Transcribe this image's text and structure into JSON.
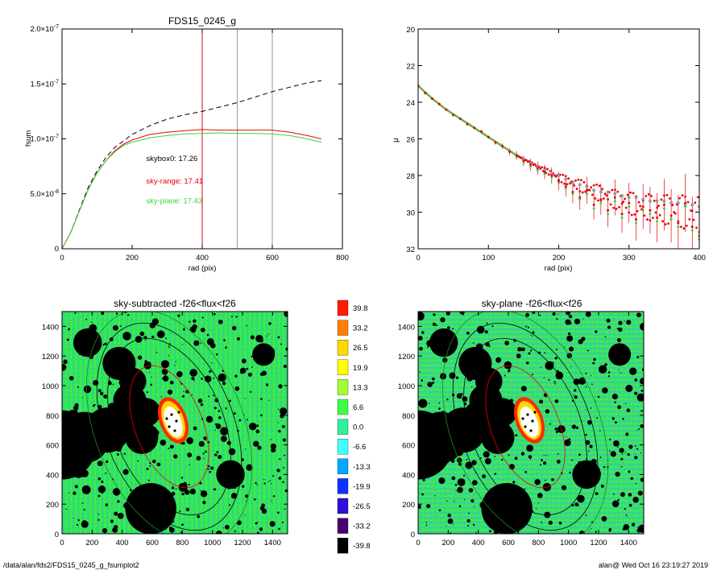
{
  "footer": {
    "left": "/data/alan/fds2/FDS15_0245_g_fsumplot2",
    "right": "alan@  Wed Oct 16 23:19:27 2019"
  },
  "colors": {
    "red": "#e8000b",
    "green": "#39d439",
    "grey": "#9a9a9a",
    "dashed": "#000000",
    "greyMarker": "#8c8ca0"
  },
  "chart_data": [
    {
      "type": "line",
      "title": "FDS15_0245_g",
      "xlabel": "rad (pix)",
      "ylabel": "fsum",
      "xlim": [
        0,
        800
      ],
      "ylim": [
        0,
        2e-07
      ],
      "xticks": [
        "0",
        "200",
        "400",
        "600",
        "800"
      ],
      "yticks": [
        {
          "mant": "0",
          "exp": ""
        },
        {
          "mant": "5.0×10",
          "exp": "-8"
        },
        {
          "mant": "1.0×10",
          "exp": "-7"
        },
        {
          "mant": "1.5×10",
          "exp": "-7"
        },
        {
          "mant": "2.0×10",
          "exp": "-7"
        }
      ],
      "vlines": [
        {
          "x": 400,
          "color": "red"
        },
        {
          "x": 500,
          "color": "grey"
        },
        {
          "x": 600,
          "color": "grey"
        }
      ],
      "annotations": [
        {
          "text": "skybox0: 17.26",
          "x": 240,
          "y": 8e-08,
          "color": "black"
        },
        {
          "text": "sky-range: 17.41",
          "x": 240,
          "y": 5.95e-08,
          "color": "red"
        },
        {
          "text": "sky-plane: 17.43",
          "x": 240,
          "y": 4.15e-08,
          "color": "green"
        }
      ],
      "series": [
        {
          "style": "dashed",
          "color": "black",
          "x": [
            0,
            25,
            50,
            75,
            100,
            125,
            150,
            175,
            200,
            250,
            300,
            350,
            400,
            450,
            500,
            550,
            600,
            650,
            700,
            740
          ],
          "y": [
            0,
            1.5e-08,
            3.6e-08,
            5.6e-08,
            7.1e-08,
            8.3e-08,
            9.2e-08,
            9.8e-08,
            1.04e-07,
            1.12e-07,
            1.18e-07,
            1.22e-07,
            1.25e-07,
            1.29e-07,
            1.33e-07,
            1.38e-07,
            1.43e-07,
            1.47e-07,
            1.51e-07,
            1.53e-07
          ]
        },
        {
          "style": "solid",
          "color": "red",
          "x": [
            0,
            25,
            50,
            75,
            100,
            125,
            150,
            175,
            200,
            250,
            300,
            350,
            400,
            450,
            500,
            550,
            600,
            650,
            700,
            740
          ],
          "y": [
            0,
            1.5e-08,
            3.5e-08,
            5.4e-08,
            6.9e-08,
            8e-08,
            8.9e-08,
            9.5e-08,
            9.9e-08,
            1.04e-07,
            1.06e-07,
            1.075e-07,
            1.085e-07,
            1.08e-07,
            1.08e-07,
            1.08e-07,
            1.08e-07,
            1.06e-07,
            1.03e-07,
            1e-07
          ]
        },
        {
          "style": "solid",
          "color": "green",
          "x": [
            0,
            25,
            50,
            75,
            100,
            125,
            150,
            175,
            200,
            250,
            300,
            350,
            400,
            450,
            500,
            550,
            600,
            650,
            700,
            740
          ],
          "y": [
            0,
            1.5e-08,
            3.5e-08,
            5.4e-08,
            6.9e-08,
            8e-08,
            8.8e-08,
            9.4e-08,
            9.7e-08,
            1.01e-07,
            1.03e-07,
            1.045e-07,
            1.05e-07,
            1.055e-07,
            1.05e-07,
            1.05e-07,
            1.045e-07,
            1.03e-07,
            1e-07,
            9.7e-08
          ]
        }
      ]
    },
    {
      "type": "scatter",
      "title": "",
      "xlabel": "rad (pix)",
      "ylabel": "μ",
      "xlim": [
        0,
        400
      ],
      "ylim": [
        32,
        20
      ],
      "xticks": [
        "0",
        "100",
        "200",
        "300",
        "400"
      ],
      "yticks": [
        "20",
        "22",
        "24",
        "26",
        "28",
        "30",
        "32"
      ],
      "trend": {
        "x": [
          0,
          20,
          40,
          60,
          80,
          100,
          120,
          140,
          160,
          180,
          200,
          220,
          240,
          260,
          280,
          300,
          320,
          340,
          360,
          380,
          400
        ],
        "y": [
          23.1,
          23.8,
          24.4,
          24.9,
          25.4,
          25.9,
          26.4,
          26.9,
          27.3,
          27.7,
          28.1,
          28.4,
          28.7,
          29.0,
          29.3,
          29.5,
          29.7,
          29.8,
          29.9,
          30.0,
          30.1
        ]
      },
      "sky_range_points": {
        "x": [
          0,
          10,
          20,
          30,
          40,
          50,
          60,
          70,
          80,
          90,
          100,
          110,
          120,
          130,
          140,
          150,
          160,
          170,
          180,
          190,
          200,
          210,
          220,
          230,
          240,
          250,
          260,
          270,
          280,
          290,
          300,
          310,
          320,
          330,
          340,
          350,
          360,
          370,
          380,
          390,
          400
        ],
        "y": [
          23.1,
          23.5,
          23.8,
          24.1,
          24.4,
          24.7,
          24.9,
          25.2,
          25.4,
          25.6,
          25.9,
          26.2,
          26.4,
          26.7,
          26.9,
          27.2,
          27.4,
          27.6,
          27.8,
          28.0,
          28.3,
          28.6,
          28.9,
          29.2,
          28.8,
          29.6,
          29.3,
          29.9,
          29.2,
          30.1,
          29.5,
          30.4,
          29.7,
          29.9,
          30.3,
          29.6,
          30.2,
          30.6,
          29.5,
          30.8,
          31.3
        ]
      },
      "sky_plane_points": {
        "x": [
          0,
          10,
          20,
          30,
          40,
          50,
          60,
          70,
          80,
          90,
          100,
          110,
          120,
          130,
          140,
          150,
          160,
          170,
          180,
          190,
          200,
          210,
          220,
          230,
          240,
          250,
          260,
          270,
          280,
          290,
          300,
          310,
          320,
          330,
          340,
          350,
          360,
          370,
          380,
          390,
          400
        ],
        "y": [
          23.1,
          23.5,
          23.8,
          24.1,
          24.4,
          24.7,
          24.9,
          25.2,
          25.4,
          25.6,
          25.9,
          26.2,
          26.4,
          26.7,
          27.0,
          27.3,
          27.5,
          27.7,
          27.9,
          28.1,
          28.4,
          28.7,
          29.0,
          29.3,
          29.0,
          29.8,
          29.5,
          30.1,
          29.4,
          30.3,
          29.7,
          30.6,
          29.9,
          30.1,
          30.5,
          29.8,
          30.4,
          30.8,
          29.7,
          31.0,
          31.5
        ]
      },
      "skybox_points": {
        "x": [
          150,
          160,
          170,
          180,
          190,
          200,
          210,
          220,
          230,
          240,
          250,
          260,
          270,
          280,
          290,
          300,
          310,
          320,
          330,
          340,
          350,
          360,
          370,
          380,
          390,
          400
        ],
        "y": [
          27.1,
          27.3,
          27.5,
          27.7,
          27.9,
          28.0,
          28.2,
          28.4,
          28.5,
          28.6,
          28.8,
          28.9,
          28.9,
          29.0,
          29.1,
          29.2,
          29.2,
          29.3,
          29.4,
          29.4,
          29.4,
          29.5,
          29.5,
          29.6,
          29.6,
          29.7
        ]
      }
    },
    {
      "type": "heatmap",
      "title": "sky-subtracted -f26<flux<f26",
      "xticks": [
        "0",
        "200",
        "400",
        "600",
        "800",
        "1000",
        "1200",
        "1400"
      ],
      "yticks": [
        "0",
        "200",
        "400",
        "600",
        "800",
        "1000",
        "1200",
        "1400"
      ],
      "xlim": [
        0,
        1500
      ],
      "ylim": [
        0,
        1500
      ]
    },
    {
      "type": "heatmap",
      "title": "sky-plane -f26<flux<f26",
      "xticks": [
        "0",
        "200",
        "400",
        "600",
        "800",
        "1000",
        "1200",
        "1400"
      ],
      "yticks": [
        "0",
        "200",
        "400",
        "600",
        "800",
        "1000",
        "1200",
        "1400"
      ],
      "xlim": [
        0,
        1500
      ],
      "ylim": [
        0,
        1500
      ]
    }
  ],
  "colorbar": {
    "labels": [
      "39.8",
      "33.2",
      "26.5",
      "19.9",
      "13.3",
      "6.6",
      "0.0",
      "-6.6",
      "-13.3",
      "-19.9",
      "-26.5",
      "-33.2",
      "-39.8"
    ],
    "colors": [
      "#ff1a00",
      "#ff8000",
      "#ffd800",
      "#ffff00",
      "#a0ff30",
      "#40ff40",
      "#30f0a0",
      "#40ffff",
      "#00a8ff",
      "#1030ff",
      "#3010d8",
      "#4a0070",
      "#000000"
    ]
  }
}
